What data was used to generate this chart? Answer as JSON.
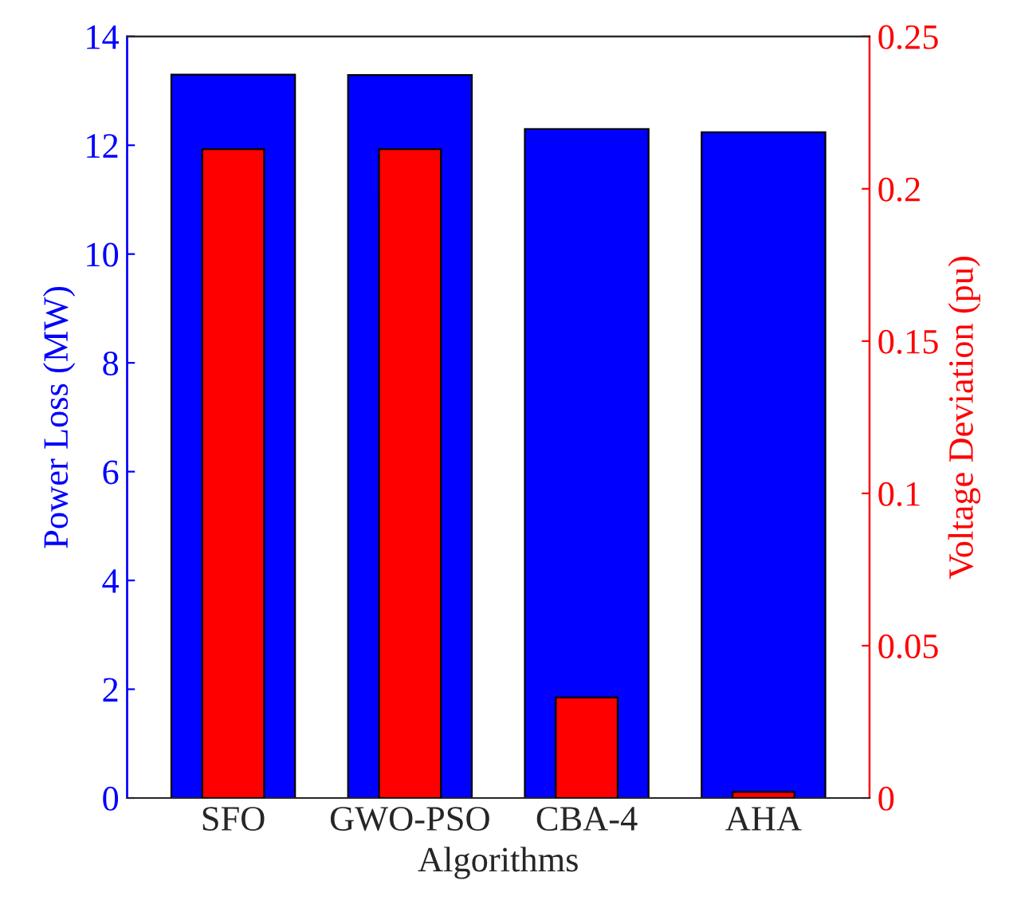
{
  "chart_data": {
    "type": "bar",
    "xlabel": "Algorithms",
    "ylabel": "Power Loss (MW)",
    "y2label": "Voltage Deviation (pu)",
    "categories": [
      "SFO",
      "GWO-PSO",
      "CBA-4",
      "AHA"
    ],
    "series": [
      {
        "color": "#0000ff",
        "values": [
          13.3,
          13.29,
          12.3,
          12.24
        ]
      },
      {
        "color": "#ff0000",
        "axis": "y2",
        "values": [
          0.213,
          0.213,
          0.033,
          0.002
        ]
      }
    ],
    "ylim": [
      0,
      14
    ],
    "yticks": [
      0,
      2,
      4,
      6,
      8,
      10,
      12,
      14
    ],
    "y2lim": [
      0,
      0.25
    ],
    "y2ticks": [
      0,
      0.05,
      0.1,
      0.15,
      0.2,
      0.25
    ],
    "grid": false,
    "legend": false
  }
}
